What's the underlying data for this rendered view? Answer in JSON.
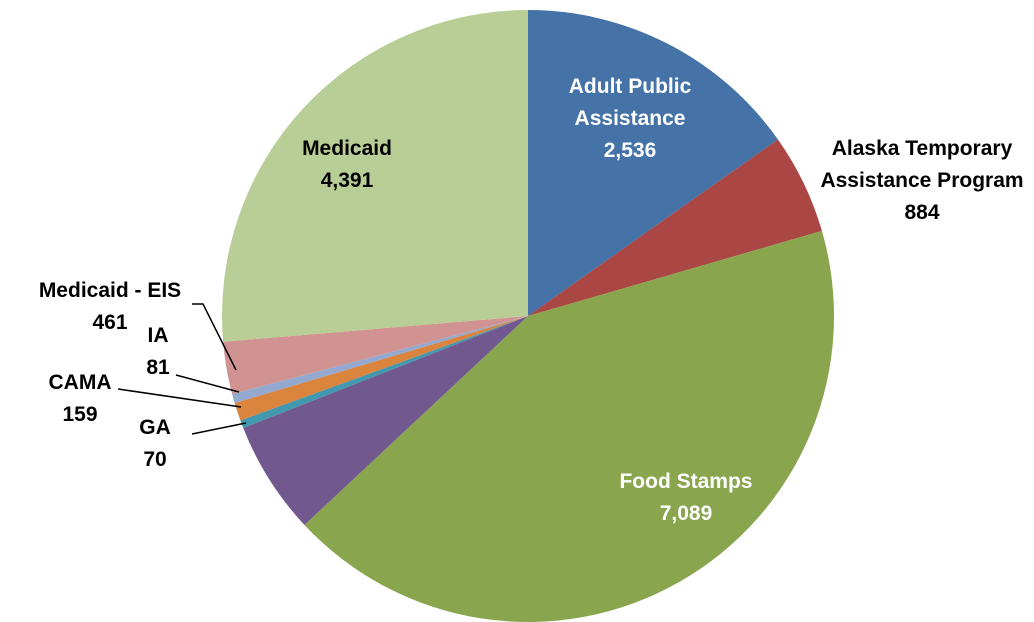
{
  "chart_data": {
    "type": "pie",
    "title": "",
    "start_angle_deg": 0,
    "direction": "clockwise",
    "slices": [
      {
        "label": "Adult Public Assistance",
        "value": 2536,
        "value_label": "2,536",
        "color": "#4572A7"
      },
      {
        "label": "Alaska Temporary Assistance Program",
        "value": 884,
        "value_label": "884",
        "color": "#AA4643"
      },
      {
        "label": "Food Stamps",
        "value": 7089,
        "value_label": "7,089",
        "color": "#89A54E"
      },
      {
        "label": "",
        "value": 1000,
        "value_label": "",
        "color": "#71588F"
      },
      {
        "label": "GA",
        "value": 70,
        "value_label": "70",
        "color": "#4198AF"
      },
      {
        "label": "CAMA",
        "value": 159,
        "value_label": "159",
        "color": "#DB843D"
      },
      {
        "label": "IA",
        "value": 81,
        "value_label": "81",
        "color": "#93A9CF"
      },
      {
        "label": "Medicaid - EIS",
        "value": 461,
        "value_label": "461",
        "color": "#D19392"
      },
      {
        "label": "Medicaid",
        "value": 4391,
        "value_label": "4,391",
        "color": "#B9CD96"
      }
    ]
  }
}
